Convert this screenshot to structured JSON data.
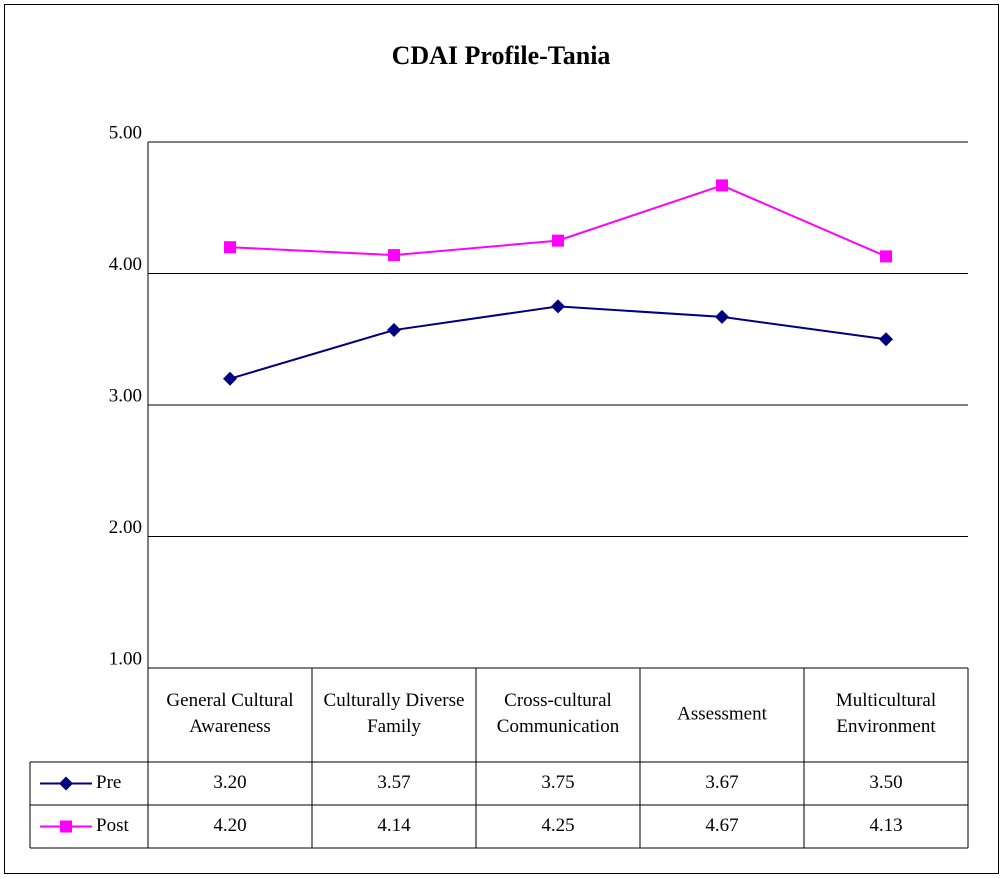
{
  "chart_data": {
    "type": "line",
    "title": "CDAI Profile-Tania",
    "categories": [
      "General Cultural Awareness",
      "Culturally Diverse Family",
      "Cross-cultural Communication",
      "Assessment",
      "Multicultural Environment"
    ],
    "series": [
      {
        "name": "Pre",
        "color": "#000080",
        "marker": "diamond",
        "values": [
          3.2,
          3.57,
          3.75,
          3.67,
          3.5
        ],
        "value_labels": [
          "3.20",
          "3.57",
          "3.75",
          "3.67",
          "3.50"
        ]
      },
      {
        "name": "Post",
        "color": "#ff00ff",
        "marker": "square",
        "values": [
          4.2,
          4.14,
          4.25,
          4.67,
          4.13
        ],
        "value_labels": [
          "4.20",
          "4.14",
          "4.25",
          "4.67",
          "4.13"
        ]
      }
    ],
    "ylim": [
      1,
      5
    ],
    "yticks": [
      {
        "value": 1,
        "label": "1.00"
      },
      {
        "value": 2,
        "label": "2.00"
      },
      {
        "value": 3,
        "label": "3.00"
      },
      {
        "value": 4,
        "label": "4.00"
      },
      {
        "value": 5,
        "label": "5.00"
      }
    ],
    "grid": true,
    "legend": "data-table"
  }
}
